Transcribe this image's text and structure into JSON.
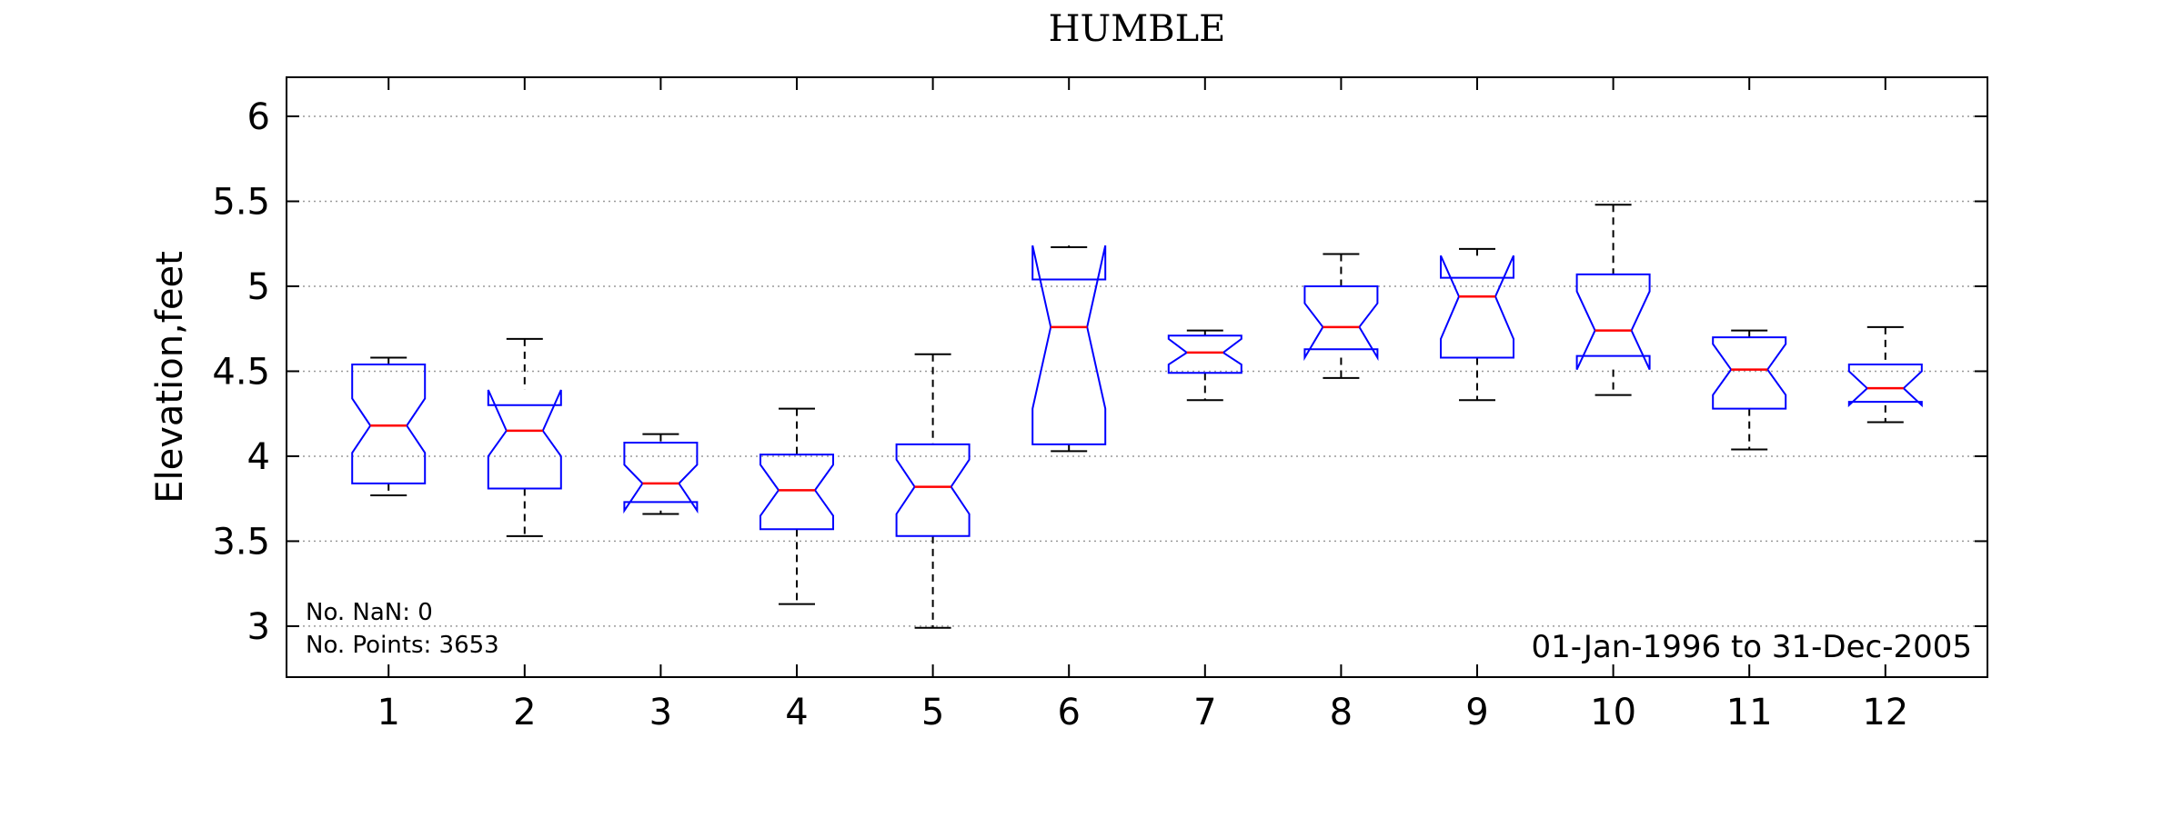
{
  "chart_data": {
    "type": "boxplot",
    "title": "HUMBLE",
    "xlabel": "",
    "ylabel": "Elevation,feet",
    "categories": [
      "1",
      "2",
      "3",
      "4",
      "5",
      "6",
      "7",
      "8",
      "9",
      "10",
      "11",
      "12"
    ],
    "yticks": [
      "3",
      "3.5",
      "4",
      "4.5",
      "5",
      "5.5",
      "6"
    ],
    "ylim": [
      2.7,
      6.23
    ],
    "grid": "horizontal dotted",
    "notched": true,
    "boxes": [
      {
        "category": "1",
        "whisker_low": 3.77,
        "q1": 3.84,
        "median": 4.18,
        "q3": 4.54,
        "whisker_high": 4.58,
        "notch_low": 4.02,
        "notch_high": 4.34
      },
      {
        "category": "2",
        "whisker_low": 3.53,
        "q1": 3.81,
        "median": 4.15,
        "q3": 4.3,
        "whisker_high": 4.69,
        "notch_low": 4.0,
        "notch_high": 4.39
      },
      {
        "category": "3",
        "whisker_low": 3.66,
        "q1": 3.73,
        "median": 3.84,
        "q3": 4.08,
        "whisker_high": 4.13,
        "notch_low": 3.68,
        "notch_high": 3.95
      },
      {
        "category": "4",
        "whisker_low": 3.13,
        "q1": 3.57,
        "median": 3.8,
        "q3": 4.01,
        "whisker_high": 4.28,
        "notch_low": 3.65,
        "notch_high": 3.95
      },
      {
        "category": "5",
        "whisker_low": 2.99,
        "q1": 3.53,
        "median": 3.82,
        "q3": 4.07,
        "whisker_high": 4.6,
        "notch_low": 3.66,
        "notch_high": 3.98
      },
      {
        "category": "6",
        "whisker_low": 4.03,
        "q1": 4.07,
        "median": 4.76,
        "q3": 5.04,
        "whisker_high": 5.23,
        "notch_low": 4.28,
        "notch_high": 5.24
      },
      {
        "category": "7",
        "whisker_low": 4.33,
        "q1": 4.49,
        "median": 4.61,
        "q3": 4.71,
        "whisker_high": 4.74,
        "notch_low": 4.54,
        "notch_high": 4.69
      },
      {
        "category": "8",
        "whisker_low": 4.46,
        "q1": 4.63,
        "median": 4.76,
        "q3": 5.0,
        "whisker_high": 5.19,
        "notch_low": 4.58,
        "notch_high": 4.9
      },
      {
        "category": "9",
        "whisker_low": 4.33,
        "q1": 4.58,
        "median": 4.94,
        "q3": 5.05,
        "whisker_high": 5.22,
        "notch_low": 4.69,
        "notch_high": 5.18
      },
      {
        "category": "10",
        "whisker_low": 4.36,
        "q1": 4.59,
        "median": 4.74,
        "q3": 5.07,
        "whisker_high": 5.48,
        "notch_low": 4.51,
        "notch_high": 4.97
      },
      {
        "category": "11",
        "whisker_low": 4.04,
        "q1": 4.28,
        "median": 4.51,
        "q3": 4.7,
        "whisker_high": 4.74,
        "notch_low": 4.36,
        "notch_high": 4.66
      },
      {
        "category": "12",
        "whisker_low": 4.2,
        "q1": 4.32,
        "median": 4.4,
        "q3": 4.54,
        "whisker_high": 4.76,
        "notch_low": 4.3,
        "notch_high": 4.5
      }
    ],
    "annotations": {
      "nan": "No. NaN: 0",
      "points": "No. Points: 3653",
      "range": "01-Jan-1996 to 31-Dec-2005"
    },
    "colors": {
      "box": "#0000ff",
      "median": "#ff0000",
      "whisker": "#000000",
      "grid": "#9a9a9a"
    }
  }
}
